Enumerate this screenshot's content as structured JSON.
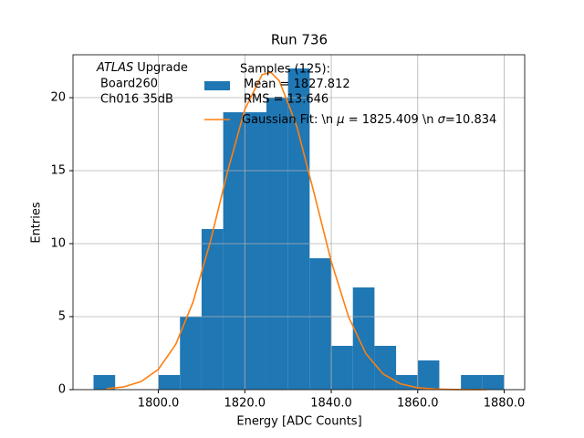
{
  "chart_data": {
    "type": "histogram",
    "title": "Run 736",
    "x_label": "Energy [ADC Counts]",
    "y_label": "Entries",
    "annotation": [
      "ATLAS",
      "Upgrade",
      "Board260",
      "Ch016 35dB"
    ],
    "bins": [
      1785,
      1790,
      1795,
      1800,
      1805,
      1810,
      1815,
      1820,
      1825,
      1830,
      1835,
      1840,
      1845,
      1850,
      1855,
      1860,
      1865,
      1870,
      1875,
      1880
    ],
    "series": [
      {
        "name": [
          "Samples (125):",
          "Mean = 1827.812",
          "RMS = 13.646"
        ],
        "color": "#1f77b4",
        "values": [
          1,
          0,
          0,
          1,
          5,
          11,
          19,
          19,
          20,
          22,
          9,
          3,
          7,
          3,
          1,
          2,
          0,
          1,
          1
        ]
      },
      {
        "name": [
          "Gaussian Fit: \\n ",
          "μ",
          " = 1825.409 \\n ",
          "σ",
          "=10.834"
        ],
        "color": "#ff7f0e",
        "x": [
          1788,
          1792,
          1796,
          1800,
          1804,
          1808,
          1812,
          1816,
          1820,
          1824,
          1826,
          1828,
          1832,
          1836,
          1840,
          1844,
          1848,
          1852,
          1856,
          1860,
          1864,
          1868,
          1872,
          1876
        ],
        "values": [
          0.06,
          0.19,
          0.55,
          1.39,
          3.09,
          5.98,
          10.11,
          14.92,
          19.2,
          21.57,
          21.74,
          21.14,
          18.07,
          13.49,
          8.78,
          4.99,
          2.47,
          1.07,
          0.4,
          0.13,
          0.04,
          0.01,
          0,
          0
        ]
      }
    ],
    "xlim": [
      1780.25,
      1884.75
    ],
    "ylim": [
      0,
      22.94
    ],
    "xticks": [
      {
        "value": 1800,
        "label": "1800.0"
      },
      {
        "value": 1820,
        "label": "1820.0"
      },
      {
        "value": 1840,
        "label": "1840.0"
      },
      {
        "value": 1860,
        "label": "1860.0"
      },
      {
        "value": 1880,
        "label": "1880.0"
      }
    ],
    "yticks": [
      0,
      5,
      10,
      15,
      20
    ],
    "grid": true
  }
}
